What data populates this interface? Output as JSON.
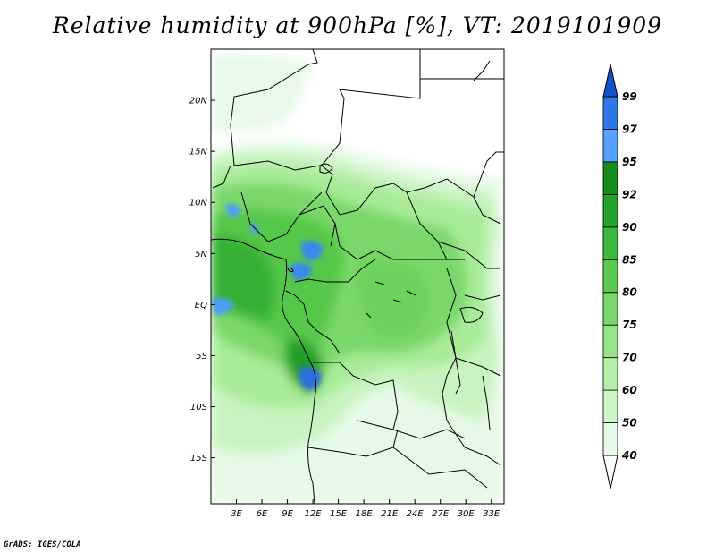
{
  "title": "Relative humidity at 900hPa [%], VT: 2019101909",
  "footer": "GrADS: IGES/COLA",
  "map": {
    "lat_labels": [
      "20N",
      "15N",
      "10N",
      "5N",
      "EQ",
      "5S",
      "10S",
      "15S"
    ],
    "lat_values": [
      20,
      15,
      10,
      5,
      0,
      -5,
      -10,
      -15
    ],
    "lon_labels": [
      "3E",
      "6E",
      "9E",
      "12E",
      "15E",
      "18E",
      "21E",
      "24E",
      "27E",
      "30E",
      "33E"
    ],
    "lon_values": [
      3,
      6,
      9,
      12,
      15,
      18,
      21,
      24,
      27,
      30,
      33
    ],
    "lon_range": [
      0,
      34.5
    ],
    "lat_range": [
      -19.5,
      25
    ]
  },
  "colorbar": {
    "labels": [
      "40",
      "50",
      "60",
      "70",
      "75",
      "80",
      "85",
      "90",
      "92",
      "95",
      "97",
      "99"
    ],
    "colors": [
      "#ffffff",
      "#e6f9e6",
      "#cdf5c8",
      "#b4efa8",
      "#96e488",
      "#78d86a",
      "#5acb4e",
      "#3cb83c",
      "#22a42a",
      "#168c1c",
      "#55a2ff",
      "#2d78e6",
      "#1450c8"
    ]
  }
}
